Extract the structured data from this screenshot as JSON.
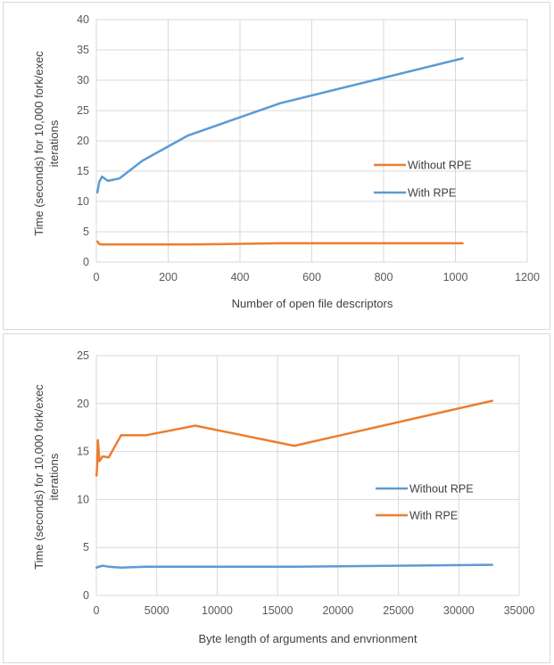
{
  "colors": {
    "blue": "#5b9bd5",
    "orange": "#ed7d31",
    "grid": "#d9d9d9",
    "text": "#595959"
  },
  "chart_data": [
    {
      "type": "line",
      "xlabel": "Number of open file descriptors",
      "ylabel_line1": "Time (seconds) for 10,000 fork/exec",
      "ylabel_line2": "iterations",
      "xlim": [
        0,
        1200
      ],
      "ylim": [
        0,
        40
      ],
      "x_ticks": [
        "0",
        "200",
        "400",
        "600",
        "800",
        "1000",
        "1200"
      ],
      "y_ticks": [
        "0",
        "5",
        "10",
        "15",
        "20",
        "25",
        "30",
        "35",
        "40"
      ],
      "grid": true,
      "legend_placement": "center-right",
      "series": [
        {
          "name": "Without RPE",
          "color": "#ed7d31",
          "x": [
            3,
            8,
            16,
            32,
            64,
            128,
            256,
            512,
            1020
          ],
          "y": [
            3.4,
            3.0,
            2.9,
            2.9,
            2.9,
            2.9,
            2.9,
            3.1,
            3.1
          ]
        },
        {
          "name": "With RPE",
          "color": "#5b9bd5",
          "x": [
            3,
            8,
            16,
            32,
            64,
            128,
            256,
            512,
            1020
          ],
          "y": [
            11.5,
            13.2,
            14.1,
            13.4,
            13.8,
            16.7,
            20.9,
            26.2,
            33.6
          ]
        }
      ]
    },
    {
      "type": "line",
      "xlabel": "Byte length of arguments and envrionment",
      "ylabel_line1": "Time (seconds) for 10,000 fork/exec",
      "ylabel_line2": "iterations",
      "xlim": [
        0,
        35000
      ],
      "ylim": [
        0,
        25
      ],
      "x_ticks": [
        "0",
        "5000",
        "10000",
        "15000",
        "20000",
        "25000",
        "30000",
        "35000"
      ],
      "y_ticks": [
        "0",
        "5",
        "10",
        "15",
        "20",
        "25"
      ],
      "grid": true,
      "legend_placement": "center-right",
      "series": [
        {
          "name": "Without RPE",
          "color": "#5b9bd5",
          "x": [
            16,
            64,
            128,
            256,
            512,
            1024,
            2048,
            4096,
            8192,
            16384,
            32768
          ],
          "y": [
            2.9,
            2.9,
            3.0,
            3.0,
            3.1,
            3.0,
            2.9,
            3.0,
            3.0,
            3.0,
            3.2
          ]
        },
        {
          "name": "With RPE",
          "color": "#ed7d31",
          "x": [
            16,
            64,
            128,
            256,
            512,
            1024,
            2048,
            4096,
            8192,
            16384,
            32768
          ],
          "y": [
            12.5,
            13.5,
            16.2,
            14.0,
            14.5,
            14.4,
            16.7,
            16.7,
            17.7,
            15.6,
            20.3
          ]
        }
      ]
    }
  ]
}
